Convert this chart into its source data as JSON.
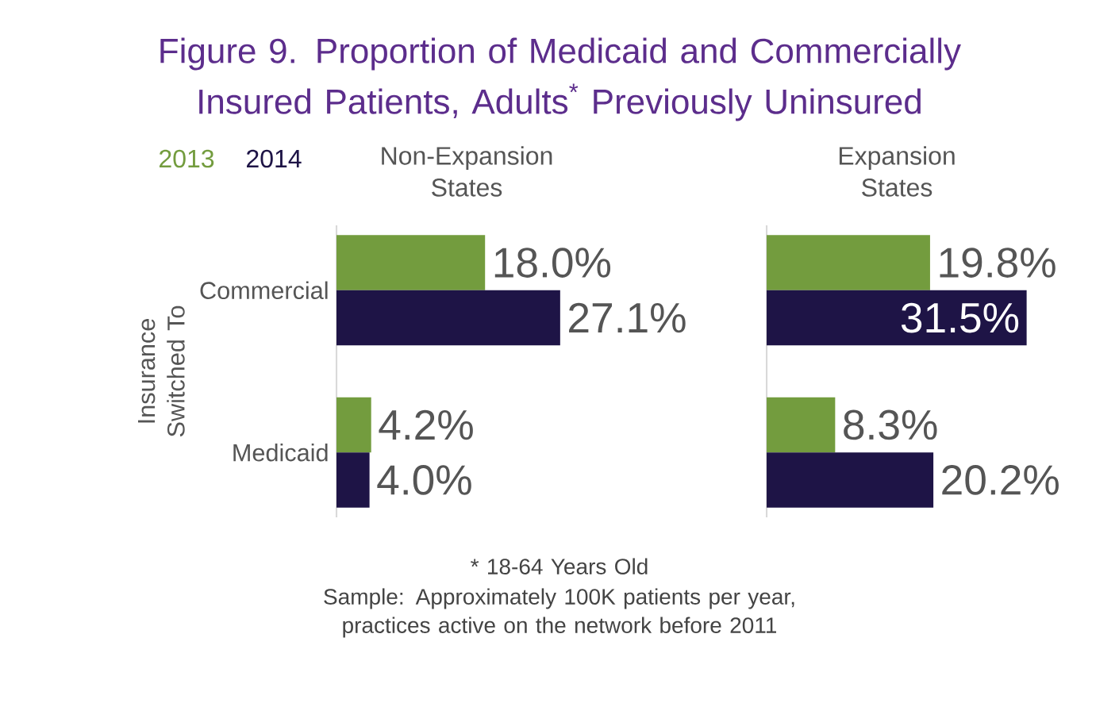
{
  "chart_data": [
    {
      "type": "bar",
      "orientation": "horizontal",
      "title": "Figure 9. Proportion of Medicaid and Commercially Insured Patients, Adults$^{*}$ Previously Uninsured",
      "subtitle": "Non-Expansion States",
      "ylabel": "Insurance Switched To",
      "categories": [
        "Commercial",
        "Medicaid"
      ],
      "tick_labels": "y",
      "legend": "top left",
      "series": [
        {
          "name": "2013",
          "color": "#739c3e",
          "values": [
            18.0,
            4.2
          ],
          "value_labels": [
            "18.0%",
            "4.2%"
          ]
        },
        {
          "name": "2014",
          "color": "#1e1446",
          "values": [
            27.1,
            4.0
          ],
          "value_labels": [
            "27.1%",
            "4.0%"
          ]
        }
      ],
      "annotations": [
        "* 18-64 Years Old",
        "Sample: Approximately 100K patients per year, practices active on the network before 2011"
      ]
    },
    {
      "type": "bar",
      "orientation": "horizontal",
      "subtitle": "Expansion States",
      "categories": [
        null,
        null
      ],
      "tick_labels": false,
      "series": [
        {
          "color": "#739c3e",
          "values": [
            19.8,
            8.3
          ],
          "value_labels": [
            "19.8%",
            "8.3%"
          ]
        },
        {
          "color": "#1e1446",
          "values": [
            31.5,
            20.2
          ],
          "value_labels": [
            "31.5%",
            "20.2%"
          ]
        }
      ]
    }
  ]
}
